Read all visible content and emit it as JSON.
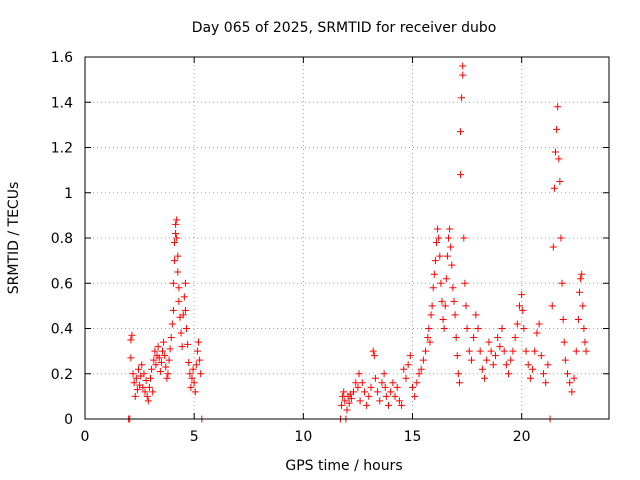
{
  "chart_data": {
    "type": "scatter",
    "title": "Day 065 of 2025, SRMTID for receiver dubo",
    "xlabel": "GPS time / hours",
    "ylabel": "SRMTID / TECUs",
    "xlim": [
      0,
      24
    ],
    "ylim": [
      0,
      1.6
    ],
    "x_ticks": [
      0,
      5,
      10,
      15,
      20
    ],
    "x_tick_labels": [
      "0",
      "5",
      "10",
      "15",
      "20"
    ],
    "y_ticks": [
      0,
      0.2,
      0.4,
      0.6,
      0.8,
      1.0,
      1.2,
      1.4,
      1.6
    ],
    "y_tick_labels": [
      "0",
      "0.2",
      "0.4",
      "0.6",
      "0.8",
      "1",
      "1.2",
      "1.4",
      "1.6"
    ],
    "grid": true,
    "marker": "+",
    "series": [
      {
        "name": "SRMTID",
        "color": "#ff0000",
        "points": [
          [
            2.0,
            0.0
          ],
          [
            2.05,
            0.0
          ],
          [
            2.1,
            0.27
          ],
          [
            2.1,
            0.35
          ],
          [
            2.15,
            0.37
          ],
          [
            2.2,
            0.2
          ],
          [
            2.25,
            0.16
          ],
          [
            2.3,
            0.1
          ],
          [
            2.35,
            0.18
          ],
          [
            2.4,
            0.13
          ],
          [
            2.45,
            0.22
          ],
          [
            2.5,
            0.15
          ],
          [
            2.55,
            0.19
          ],
          [
            2.6,
            0.24
          ],
          [
            2.65,
            0.14
          ],
          [
            2.7,
            0.2
          ],
          [
            2.75,
            0.12
          ],
          [
            2.8,
            0.17
          ],
          [
            2.85,
            0.1
          ],
          [
            2.9,
            0.08
          ],
          [
            2.95,
            0.14
          ],
          [
            3.0,
            0.18
          ],
          [
            3.05,
            0.22
          ],
          [
            3.1,
            0.12
          ],
          [
            3.15,
            0.26
          ],
          [
            3.2,
            0.3
          ],
          [
            3.25,
            0.24
          ],
          [
            3.3,
            0.28
          ],
          [
            3.35,
            0.32
          ],
          [
            3.4,
            0.27
          ],
          [
            3.45,
            0.21
          ],
          [
            3.5,
            0.25
          ],
          [
            3.55,
            0.3
          ],
          [
            3.6,
            0.34
          ],
          [
            3.65,
            0.28
          ],
          [
            3.7,
            0.23
          ],
          [
            3.75,
            0.18
          ],
          [
            3.8,
            0.2
          ],
          [
            3.85,
            0.26
          ],
          [
            3.9,
            0.31
          ],
          [
            3.95,
            0.36
          ],
          [
            4.0,
            0.42
          ],
          [
            4.05,
            0.48
          ],
          [
            4.05,
            0.6
          ],
          [
            4.1,
            0.7
          ],
          [
            4.1,
            0.78
          ],
          [
            4.15,
            0.82
          ],
          [
            4.15,
            0.86
          ],
          [
            4.2,
            0.88
          ],
          [
            4.2,
            0.8
          ],
          [
            4.25,
            0.72
          ],
          [
            4.25,
            0.65
          ],
          [
            4.3,
            0.58
          ],
          [
            4.3,
            0.52
          ],
          [
            4.35,
            0.45
          ],
          [
            4.4,
            0.38
          ],
          [
            4.45,
            0.32
          ],
          [
            4.5,
            0.46
          ],
          [
            4.55,
            0.54
          ],
          [
            4.6,
            0.6
          ],
          [
            4.6,
            0.48
          ],
          [
            4.65,
            0.4
          ],
          [
            4.7,
            0.33
          ],
          [
            4.75,
            0.25
          ],
          [
            4.8,
            0.2
          ],
          [
            4.85,
            0.14
          ],
          [
            4.9,
            0.18
          ],
          [
            4.95,
            0.22
          ],
          [
            5.0,
            0.16
          ],
          [
            5.05,
            0.12
          ],
          [
            5.1,
            0.24
          ],
          [
            5.15,
            0.3
          ],
          [
            5.2,
            0.34
          ],
          [
            5.25,
            0.26
          ],
          [
            5.3,
            0.2
          ],
          [
            5.35,
            0.0
          ],
          [
            11.7,
            0.0
          ],
          [
            11.75,
            0.06
          ],
          [
            11.8,
            0.1
          ],
          [
            11.85,
            0.12
          ],
          [
            11.9,
            0.08
          ],
          [
            11.95,
            0.0
          ],
          [
            12.0,
            0.04
          ],
          [
            12.05,
            0.1
          ],
          [
            12.1,
            0.07
          ],
          [
            12.15,
            0.11
          ],
          [
            12.2,
            0.09
          ],
          [
            12.3,
            0.12
          ],
          [
            12.4,
            0.16
          ],
          [
            12.5,
            0.14
          ],
          [
            12.55,
            0.2
          ],
          [
            12.6,
            0.08
          ],
          [
            12.7,
            0.16
          ],
          [
            12.8,
            0.12
          ],
          [
            12.9,
            0.06
          ],
          [
            13.0,
            0.1
          ],
          [
            13.1,
            0.14
          ],
          [
            13.2,
            0.3
          ],
          [
            13.25,
            0.28
          ],
          [
            13.3,
            0.18
          ],
          [
            13.4,
            0.12
          ],
          [
            13.5,
            0.08
          ],
          [
            13.6,
            0.16
          ],
          [
            13.7,
            0.2
          ],
          [
            13.75,
            0.14
          ],
          [
            13.8,
            0.1
          ],
          [
            13.9,
            0.06
          ],
          [
            14.0,
            0.12
          ],
          [
            14.1,
            0.16
          ],
          [
            14.2,
            0.1
          ],
          [
            14.3,
            0.14
          ],
          [
            14.4,
            0.08
          ],
          [
            14.5,
            0.06
          ],
          [
            14.6,
            0.22
          ],
          [
            14.7,
            0.18
          ],
          [
            14.8,
            0.24
          ],
          [
            14.9,
            0.28
          ],
          [
            15.0,
            0.14
          ],
          [
            15.1,
            0.1
          ],
          [
            15.2,
            0.16
          ],
          [
            15.3,
            0.2
          ],
          [
            15.4,
            0.22
          ],
          [
            15.5,
            0.26
          ],
          [
            15.6,
            0.3
          ],
          [
            15.7,
            0.36
          ],
          [
            15.75,
            0.4
          ],
          [
            15.8,
            0.34
          ],
          [
            15.85,
            0.46
          ],
          [
            15.9,
            0.5
          ],
          [
            15.95,
            0.58
          ],
          [
            16.0,
            0.64
          ],
          [
            16.05,
            0.7
          ],
          [
            16.1,
            0.78
          ],
          [
            16.15,
            0.84
          ],
          [
            16.2,
            0.8
          ],
          [
            16.25,
            0.72
          ],
          [
            16.3,
            0.6
          ],
          [
            16.35,
            0.52
          ],
          [
            16.4,
            0.44
          ],
          [
            16.45,
            0.4
          ],
          [
            16.5,
            0.5
          ],
          [
            16.55,
            0.62
          ],
          [
            16.6,
            0.72
          ],
          [
            16.65,
            0.8
          ],
          [
            16.7,
            0.84
          ],
          [
            16.75,
            0.76
          ],
          [
            16.8,
            0.68
          ],
          [
            16.85,
            0.58
          ],
          [
            16.9,
            0.52
          ],
          [
            16.95,
            0.46
          ],
          [
            17.0,
            0.36
          ],
          [
            17.05,
            0.28
          ],
          [
            17.1,
            0.2
          ],
          [
            17.15,
            0.16
          ],
          [
            17.2,
            1.27
          ],
          [
            17.2,
            1.08
          ],
          [
            17.25,
            1.42
          ],
          [
            17.3,
            1.52
          ],
          [
            17.3,
            1.56
          ],
          [
            17.35,
            0.8
          ],
          [
            17.4,
            0.6
          ],
          [
            17.45,
            0.5
          ],
          [
            17.5,
            0.4
          ],
          [
            17.6,
            0.3
          ],
          [
            17.7,
            0.26
          ],
          [
            17.8,
            0.36
          ],
          [
            17.9,
            0.46
          ],
          [
            18.0,
            0.4
          ],
          [
            18.1,
            0.3
          ],
          [
            18.2,
            0.22
          ],
          [
            18.3,
            0.18
          ],
          [
            18.4,
            0.26
          ],
          [
            18.5,
            0.34
          ],
          [
            18.6,
            0.3
          ],
          [
            18.7,
            0.24
          ],
          [
            18.8,
            0.28
          ],
          [
            18.9,
            0.36
          ],
          [
            19.0,
            0.32
          ],
          [
            19.1,
            0.4
          ],
          [
            19.2,
            0.3
          ],
          [
            19.3,
            0.24
          ],
          [
            19.4,
            0.2
          ],
          [
            19.5,
            0.26
          ],
          [
            19.6,
            0.3
          ],
          [
            19.7,
            0.36
          ],
          [
            19.8,
            0.42
          ],
          [
            19.9,
            0.5
          ],
          [
            20.0,
            0.55
          ],
          [
            20.05,
            0.48
          ],
          [
            20.1,
            0.4
          ],
          [
            20.2,
            0.3
          ],
          [
            20.3,
            0.24
          ],
          [
            20.4,
            0.18
          ],
          [
            20.5,
            0.22
          ],
          [
            20.6,
            0.3
          ],
          [
            20.7,
            0.38
          ],
          [
            20.8,
            0.42
          ],
          [
            20.9,
            0.28
          ],
          [
            21.0,
            0.2
          ],
          [
            21.1,
            0.16
          ],
          [
            21.2,
            0.24
          ],
          [
            21.3,
            0.0
          ],
          [
            21.4,
            0.5
          ],
          [
            21.45,
            0.76
          ],
          [
            21.5,
            1.02
          ],
          [
            21.55,
            1.18
          ],
          [
            21.6,
            1.28
          ],
          [
            21.65,
            1.38
          ],
          [
            21.7,
            1.15
          ],
          [
            21.75,
            1.05
          ],
          [
            21.8,
            0.8
          ],
          [
            21.85,
            0.6
          ],
          [
            21.9,
            0.44
          ],
          [
            21.95,
            0.34
          ],
          [
            22.0,
            0.26
          ],
          [
            22.1,
            0.2
          ],
          [
            22.2,
            0.16
          ],
          [
            22.3,
            0.12
          ],
          [
            22.4,
            0.18
          ],
          [
            22.5,
            0.3
          ],
          [
            22.6,
            0.44
          ],
          [
            22.65,
            0.56
          ],
          [
            22.7,
            0.62
          ],
          [
            22.75,
            0.64
          ],
          [
            22.8,
            0.5
          ],
          [
            22.85,
            0.4
          ],
          [
            22.9,
            0.34
          ],
          [
            22.95,
            0.3
          ]
        ]
      }
    ]
  }
}
